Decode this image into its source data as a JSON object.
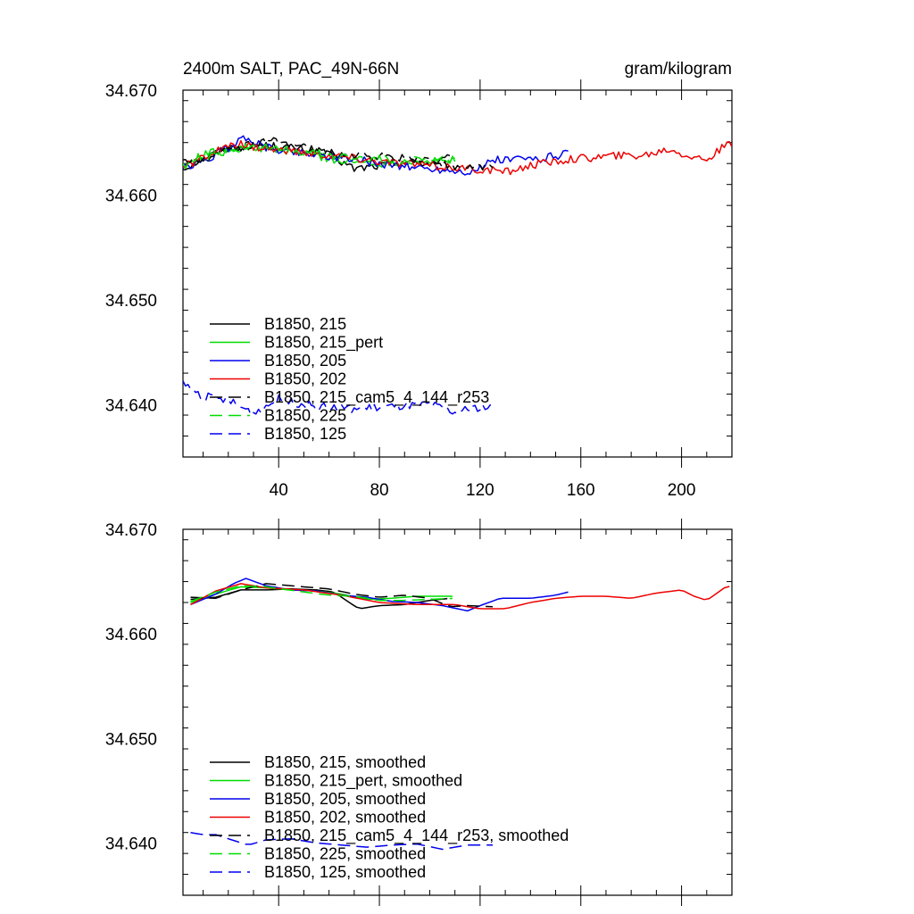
{
  "chart_data": [
    {
      "type": "line",
      "title": "2400m SALT, PAC_49N-66N",
      "units": "gram/kilogram",
      "xlabel": "",
      "ylabel": "",
      "xlim": [
        2,
        220
      ],
      "ylim": [
        34.635,
        34.67
      ],
      "xticks": [
        40,
        80,
        120,
        160,
        200
      ],
      "xtick_labels": [
        "40",
        "80",
        "120",
        "160",
        "200"
      ],
      "yticks": [
        34.64,
        34.65,
        34.66,
        34.67
      ],
      "ytick_labels": [
        "34.640",
        "34.650",
        "34.660",
        "34.670"
      ],
      "legend_position": "bottom-left",
      "series": [
        {
          "name": "B1850, 215",
          "color": "#000000",
          "dash": "solid",
          "jitter": 0.0008,
          "knots": [
            [
              2,
              34.6625
            ],
            [
              10,
              34.6635
            ],
            [
              20,
              34.6645
            ],
            [
              30,
              34.6648
            ],
            [
              45,
              34.6645
            ],
            [
              60,
              34.6638
            ],
            [
              70,
              34.6625
            ],
            [
              80,
              34.6628
            ],
            [
              90,
              34.6632
            ],
            [
              100,
              34.663
            ],
            [
              108,
              34.6635
            ]
          ]
        },
        {
          "name": "B1850, 215_pert",
          "color": "#00dd00",
          "dash": "solid",
          "jitter": 0.0008,
          "knots": [
            [
              2,
              34.6628
            ],
            [
              10,
              34.6638
            ],
            [
              20,
              34.6645
            ],
            [
              30,
              34.6645
            ],
            [
              40,
              34.6642
            ],
            [
              55,
              34.6638
            ],
            [
              65,
              34.6632
            ],
            [
              80,
              34.663
            ],
            [
              95,
              34.6632
            ],
            [
              105,
              34.6632
            ],
            [
              110,
              34.6635
            ]
          ]
        },
        {
          "name": "B1850, 205",
          "color": "#0000ee",
          "dash": "solid",
          "jitter": 0.0008,
          "knots": [
            [
              2,
              34.6625
            ],
            [
              10,
              34.6632
            ],
            [
              20,
              34.6645
            ],
            [
              27,
              34.6655
            ],
            [
              35,
              34.6645
            ],
            [
              50,
              34.664
            ],
            [
              65,
              34.6636
            ],
            [
              80,
              34.663
            ],
            [
              95,
              34.6626
            ],
            [
              110,
              34.6623
            ],
            [
              118,
              34.6622
            ],
            [
              125,
              34.6633
            ],
            [
              135,
              34.6634
            ],
            [
              145,
              34.6635
            ],
            [
              155,
              34.664
            ]
          ]
        },
        {
          "name": "B1850, 202",
          "color": "#ee0000",
          "dash": "solid",
          "jitter": 0.0008,
          "knots": [
            [
              2,
              34.6626
            ],
            [
              15,
              34.6642
            ],
            [
              25,
              34.6648
            ],
            [
              40,
              34.6643
            ],
            [
              60,
              34.6638
            ],
            [
              80,
              34.6632
            ],
            [
              100,
              34.6628
            ],
            [
              115,
              34.6625
            ],
            [
              130,
              34.6622
            ],
            [
              140,
              34.6628
            ],
            [
              155,
              34.6634
            ],
            [
              170,
              34.6637
            ],
            [
              185,
              34.6638
            ],
            [
              195,
              34.6644
            ],
            [
              205,
              34.6636
            ],
            [
              210,
              34.6634
            ],
            [
              217,
              34.6646
            ],
            [
              220,
              34.6648
            ]
          ]
        },
        {
          "name": "B1850, 215_cam5_4_144_r253",
          "color": "#000000",
          "dash": "dashed",
          "jitter": 0.0008,
          "knots": [
            [
              2,
              34.6632
            ],
            [
              10,
              34.6634
            ],
            [
              20,
              34.6642
            ],
            [
              30,
              34.6648
            ],
            [
              40,
              34.6652
            ],
            [
              55,
              34.6642
            ],
            [
              70,
              34.6638
            ],
            [
              85,
              34.6636
            ],
            [
              100,
              34.6634
            ],
            [
              110,
              34.6625
            ],
            [
              120,
              34.6628
            ],
            [
              125,
              34.6626
            ]
          ]
        },
        {
          "name": "B1850, 225",
          "color": "#00dd00",
          "dash": "dashed",
          "jitter": 0.0008,
          "knots": [
            [
              2,
              34.6628
            ],
            [
              15,
              34.664
            ],
            [
              30,
              34.6646
            ],
            [
              45,
              34.6642
            ],
            [
              60,
              34.6638
            ],
            [
              75,
              34.6634
            ],
            [
              90,
              34.6634
            ],
            [
              100,
              34.6632
            ],
            [
              110,
              34.6635
            ]
          ]
        },
        {
          "name": "B1850, 125",
          "color": "#0000ee",
          "dash": "dashed",
          "jitter": 0.0008,
          "knots": [
            [
              2,
              34.642
            ],
            [
              10,
              34.6408
            ],
            [
              20,
              34.6404
            ],
            [
              30,
              34.6392
            ],
            [
              40,
              34.6405
            ],
            [
              55,
              34.6398
            ],
            [
              70,
              34.6396
            ],
            [
              85,
              34.6398
            ],
            [
              100,
              34.64
            ],
            [
              110,
              34.6392
            ],
            [
              120,
              34.6398
            ],
            [
              125,
              34.6396
            ]
          ]
        }
      ]
    },
    {
      "type": "line",
      "title": "",
      "units": "",
      "xlabel": "",
      "ylabel": "",
      "xlim": [
        2,
        220
      ],
      "ylim": [
        34.635,
        34.67
      ],
      "xticks": [
        40,
        80,
        120,
        160,
        200
      ],
      "xtick_labels": [
        "",
        "",
        "",
        "",
        ""
      ],
      "yticks": [
        34.64,
        34.65,
        34.66,
        34.67
      ],
      "ytick_labels": [
        "34.640",
        "34.650",
        "34.660",
        "34.670"
      ],
      "legend_position": "bottom-left",
      "series": [
        {
          "name": "B1850, 215, smoothed",
          "color": "#000000",
          "dash": "solid",
          "jitter": 0,
          "knots": [
            [
              5,
              34.6633
            ],
            [
              15,
              34.6635
            ],
            [
              25,
              34.6642
            ],
            [
              35,
              34.6642
            ],
            [
              45,
              34.6643
            ],
            [
              55,
              34.6642
            ],
            [
              62,
              34.664
            ],
            [
              68,
              34.663
            ],
            [
              72,
              34.6624
            ],
            [
              80,
              34.6627
            ],
            [
              90,
              34.6628
            ],
            [
              100,
              34.6632
            ],
            [
              108,
              34.6634
            ]
          ]
        },
        {
          "name": "B1850, 215_pert, smoothed",
          "color": "#00dd00",
          "dash": "solid",
          "jitter": 0,
          "knots": [
            [
              5,
              34.663
            ],
            [
              15,
              34.6638
            ],
            [
              25,
              34.6645
            ],
            [
              35,
              34.6644
            ],
            [
              45,
              34.6642
            ],
            [
              55,
              34.6641
            ],
            [
              65,
              34.6638
            ],
            [
              75,
              34.6633
            ],
            [
              85,
              34.6634
            ],
            [
              95,
              34.6636
            ],
            [
              105,
              34.6636
            ],
            [
              110,
              34.6636
            ]
          ]
        },
        {
          "name": "B1850, 205, smoothed",
          "color": "#0000ee",
          "dash": "solid",
          "jitter": 0,
          "knots": [
            [
              5,
              34.6628
            ],
            [
              15,
              34.6638
            ],
            [
              22,
              34.6648
            ],
            [
              27,
              34.6653
            ],
            [
              35,
              34.6646
            ],
            [
              45,
              34.6642
            ],
            [
              55,
              34.6641
            ],
            [
              65,
              34.6637
            ],
            [
              75,
              34.6635
            ],
            [
              85,
              34.6631
            ],
            [
              95,
              34.663
            ],
            [
              105,
              34.6627
            ],
            [
              115,
              34.6622
            ],
            [
              120,
              34.6627
            ],
            [
              128,
              34.6634
            ],
            [
              140,
              34.6634
            ],
            [
              150,
              34.6637
            ],
            [
              155,
              34.664
            ]
          ]
        },
        {
          "name": "B1850, 202, smoothed",
          "color": "#ee0000",
          "dash": "solid",
          "jitter": 0,
          "knots": [
            [
              5,
              34.6628
            ],
            [
              15,
              34.6641
            ],
            [
              25,
              34.6648
            ],
            [
              35,
              34.6644
            ],
            [
              50,
              34.6642
            ],
            [
              65,
              34.6637
            ],
            [
              80,
              34.663
            ],
            [
              95,
              34.6628
            ],
            [
              110,
              34.6628
            ],
            [
              120,
              34.6624
            ],
            [
              130,
              34.6624
            ],
            [
              140,
              34.663
            ],
            [
              150,
              34.6634
            ],
            [
              160,
              34.6636
            ],
            [
              170,
              34.6636
            ],
            [
              180,
              34.6634
            ],
            [
              190,
              34.6639
            ],
            [
              200,
              34.6642
            ],
            [
              205,
              34.6636
            ],
            [
              210,
              34.6632
            ],
            [
              217,
              34.6644
            ],
            [
              220,
              34.6646
            ]
          ]
        },
        {
          "name": "B1850, 215_cam5_4_144_r253, smoothed",
          "color": "#000000",
          "dash": "dashed",
          "jitter": 0,
          "knots": [
            [
              5,
              34.6635
            ],
            [
              15,
              34.6634
            ],
            [
              25,
              34.6642
            ],
            [
              35,
              34.6648
            ],
            [
              45,
              34.6646
            ],
            [
              60,
              34.6643
            ],
            [
              70,
              34.6638
            ],
            [
              80,
              34.6635
            ],
            [
              90,
              34.6637
            ],
            [
              100,
              34.6634
            ],
            [
              108,
              34.6626
            ],
            [
              115,
              34.6627
            ],
            [
              125,
              34.6626
            ]
          ]
        },
        {
          "name": "B1850, 225, smoothed",
          "color": "#00dd00",
          "dash": "dashed",
          "jitter": 0,
          "knots": [
            [
              5,
              34.6631
            ],
            [
              15,
              34.664
            ],
            [
              25,
              34.6646
            ],
            [
              35,
              34.6645
            ],
            [
              50,
              34.664
            ],
            [
              60,
              34.6637
            ],
            [
              70,
              34.6636
            ],
            [
              80,
              34.6632
            ],
            [
              90,
              34.6632
            ],
            [
              100,
              34.6633
            ],
            [
              110,
              34.6634
            ]
          ]
        },
        {
          "name": "B1850, 125, smoothed",
          "color": "#0000ee",
          "dash": "dashed",
          "jitter": 0,
          "knots": [
            [
              5,
              34.641
            ],
            [
              10,
              34.6408
            ],
            [
              15,
              34.6408
            ],
            [
              20,
              34.6404
            ],
            [
              28,
              34.6398
            ],
            [
              35,
              34.6403
            ],
            [
              45,
              34.6404
            ],
            [
              55,
              34.64
            ],
            [
              65,
              34.6398
            ],
            [
              75,
              34.6396
            ],
            [
              85,
              34.6398
            ],
            [
              95,
              34.6399
            ],
            [
              105,
              34.6394
            ],
            [
              115,
              34.6398
            ],
            [
              125,
              34.6398
            ]
          ]
        }
      ]
    }
  ]
}
